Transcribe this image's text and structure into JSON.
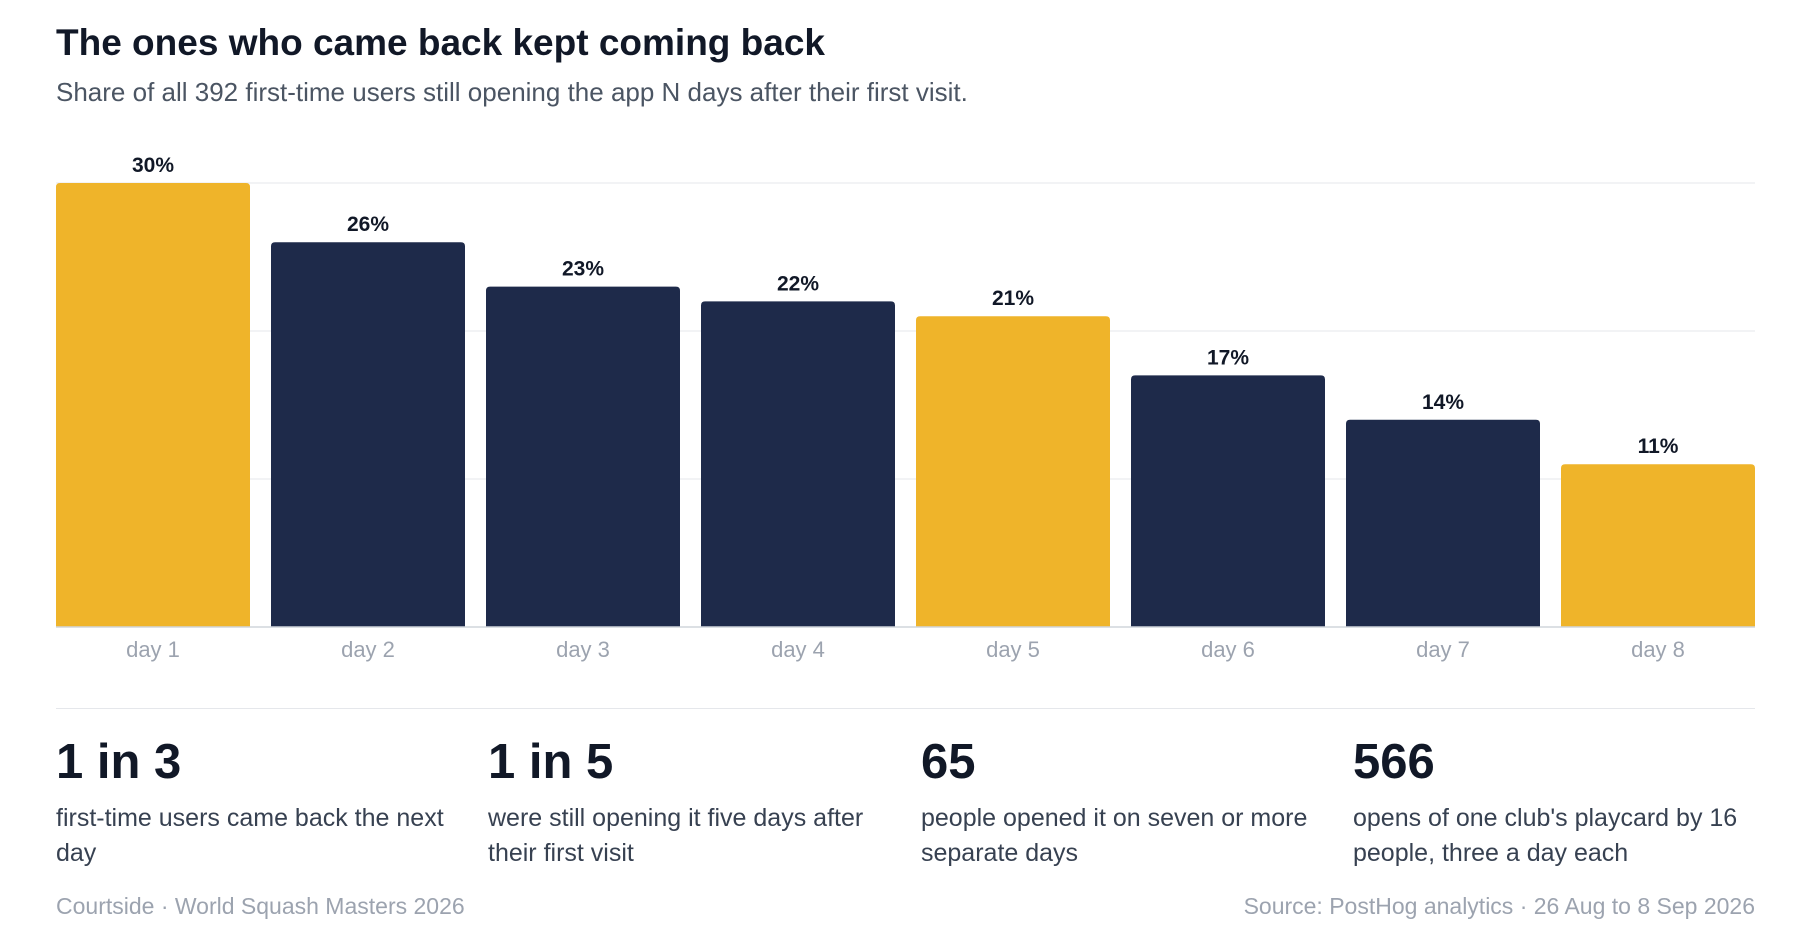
{
  "title": "The ones who came back kept coming back",
  "subtitle": "Share of all 392 first-time users still opening the app N days after their first visit.",
  "colors": {
    "highlight": "#EFB42A",
    "default": "#1E2A4A",
    "grid": "#e5e7eb",
    "axis": "#d1d5db",
    "tick_label": "#9ca3af",
    "value_label": "#111827"
  },
  "chart_data": {
    "type": "bar",
    "title": "The ones who came back kept coming back",
    "subtitle": "Share of all 392 first-time users still opening the app N days after their first visit.",
    "xlabel": "",
    "ylabel": "",
    "categories": [
      "day 1",
      "day 2",
      "day 3",
      "day 4",
      "day 5",
      "day 6",
      "day 7",
      "day 8"
    ],
    "values": [
      30,
      26,
      23,
      22,
      21,
      17,
      14,
      11
    ],
    "value_labels": [
      "30%",
      "26%",
      "23%",
      "22%",
      "21%",
      "17%",
      "14%",
      "11%"
    ],
    "highlighted": [
      true,
      false,
      false,
      false,
      true,
      false,
      false,
      true
    ],
    "ylim": [
      0,
      30
    ],
    "gridlines": [
      10,
      20,
      30
    ],
    "grid": true,
    "legend": "none"
  },
  "stats": [
    {
      "value": "1 in 3",
      "text": "first-time users came back the next day"
    },
    {
      "value": "1 in 5",
      "text": "were still opening it five days after their first visit"
    },
    {
      "value": "65",
      "text": "people opened it on seven or more separate days"
    },
    {
      "value": "566",
      "text": "opens of one club's playcard by 16 people, three a day each"
    }
  ],
  "footer": {
    "left": "Courtside · World Squash Masters 2026",
    "right": "Source: PostHog analytics · 26 Aug to 8 Sep 2026"
  }
}
